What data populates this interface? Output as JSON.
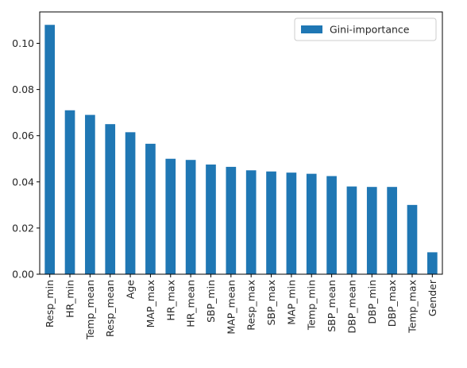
{
  "chart_data": {
    "type": "bar",
    "title": "",
    "xlabel": "",
    "ylabel": "",
    "categories": [
      "Resp_min",
      "HR_min",
      "Temp_mean",
      "Resp_mean",
      "Age",
      "MAP_max",
      "HR_max",
      "HR_mean",
      "SBP_min",
      "MAP_mean",
      "Resp_max",
      "SBP_max",
      "MAP_min",
      "Temp_min",
      "SBP_mean",
      "DBP_mean",
      "DBP_min",
      "DBP_max",
      "Temp_max",
      "Gender"
    ],
    "series": [
      {
        "name": "Gini-importance",
        "values": [
          0.108,
          0.071,
          0.069,
          0.065,
          0.0615,
          0.0565,
          0.05,
          0.0495,
          0.0475,
          0.0465,
          0.045,
          0.0445,
          0.044,
          0.0435,
          0.0425,
          0.038,
          0.0378,
          0.0378,
          0.03,
          0.0095
        ]
      }
    ],
    "ylim": [
      0,
      0.1136
    ],
    "yticks": [
      0.0,
      0.02,
      0.04,
      0.06,
      0.08,
      0.1
    ],
    "ytick_labels": [
      "0.00",
      "0.02",
      "0.04",
      "0.06",
      "0.08",
      "0.10"
    ],
    "grid": false,
    "legend": "top-right",
    "bar_color": "#1f77b4"
  }
}
